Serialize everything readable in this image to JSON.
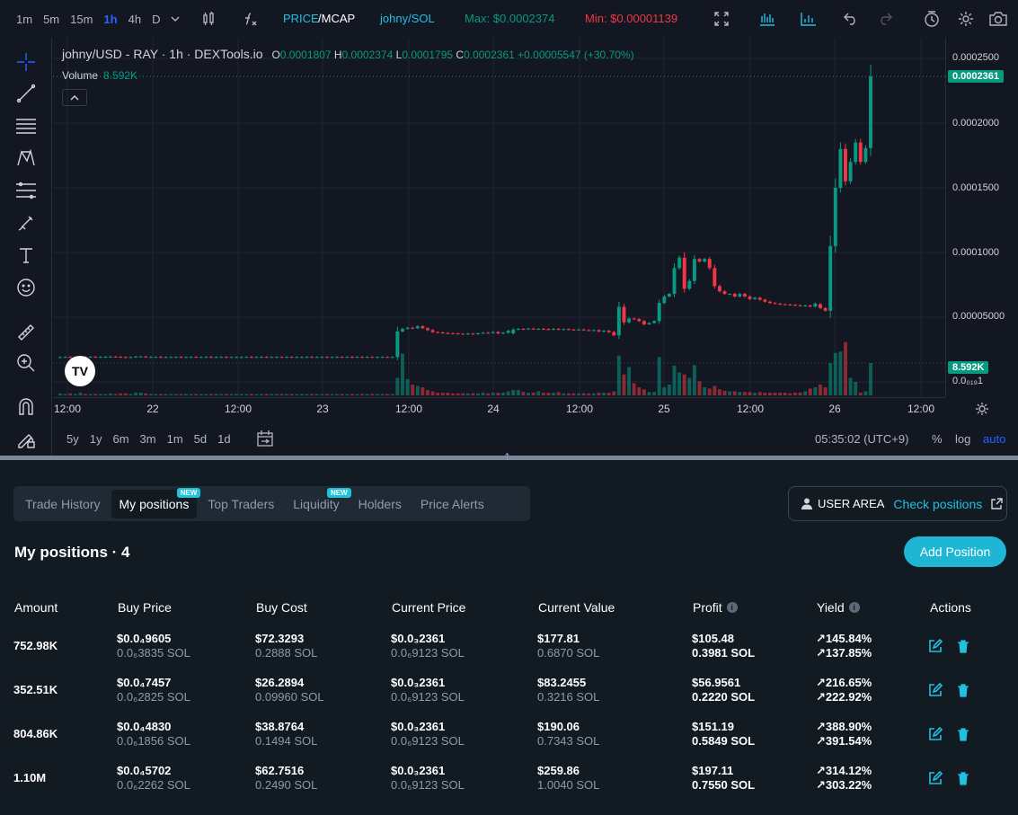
{
  "toolbar": {
    "timeframes": [
      "1m",
      "5m",
      "15m",
      "1h",
      "4h",
      "D"
    ],
    "price_label": "PRICE",
    "mcap_label": "/MCAP",
    "pair": "johny/SOL",
    "max": "Max: $0.0002374",
    "min": "Min: $0.00001139"
  },
  "legend": {
    "symbol": "johny/USD - RAY · 1h · DEXTools.io",
    "o_label": "O",
    "o": "0.0001807",
    "h_label": "H",
    "h": "0.0002374",
    "l_label": "L",
    "l": "0.0001795",
    "c_label": "C",
    "c": "0.0002361",
    "change": "+0.00005547 (+30.70%)",
    "volume_label": "Volume",
    "volume": "8.592K"
  },
  "price_axis": {
    "ticks": [
      "0.0002500",
      "0.0002000",
      "0.0001500",
      "0.0001000",
      "0.00005000",
      "0.0₀₁₉1"
    ],
    "last_price": "0.0002361",
    "last_volume": "8.592K"
  },
  "time_axis": [
    "12:00",
    "22",
    "12:00",
    "23",
    "12:00",
    "24",
    "12:00",
    "25",
    "12:00",
    "26",
    "12:00"
  ],
  "bottombar": {
    "ranges": [
      "5y",
      "1y",
      "6m",
      "3m",
      "1m",
      "5d",
      "1d"
    ],
    "clock": "05:35:02 (UTC+9)",
    "percent": "%",
    "log": "log",
    "auto": "auto"
  },
  "colors": {
    "up": "#089981",
    "down": "#f23645",
    "accent": "#1fb6d6"
  },
  "chart_data": {
    "type": "candlestick",
    "candles": [
      {
        "o": 1.91e-05,
        "c": 1.91e-05,
        "v": 0.3
      },
      {
        "o": 1.91e-05,
        "c": 1.93e-05,
        "v": 0.2
      },
      {
        "o": 1.93e-05,
        "c": 1.92e-05,
        "v": 0.3
      },
      {
        "o": 1.92e-05,
        "c": 1.92e-05,
        "v": 0.2
      },
      {
        "o": 1.92e-05,
        "c": 1.95e-05,
        "v": 0.4
      },
      {
        "o": 1.95e-05,
        "c": 1.94e-05,
        "v": 0.2
      },
      {
        "o": 1.94e-05,
        "c": 1.94e-05,
        "v": 0.2
      },
      {
        "o": 1.94e-05,
        "c": 1.93e-05,
        "v": 0.2
      },
      {
        "o": 1.93e-05,
        "c": 1.93e-05,
        "v": 0.2
      },
      {
        "o": 1.93e-05,
        "c": 1.94e-05,
        "v": 0.2
      },
      {
        "o": 1.94e-05,
        "c": 1.95e-05,
        "v": 0.3
      },
      {
        "o": 1.95e-05,
        "c": 1.94e-05,
        "v": 0.2
      },
      {
        "o": 1.94e-05,
        "c": 1.92e-05,
        "v": 0.3
      },
      {
        "o": 1.92e-05,
        "c": 1.9e-05,
        "v": 0.3
      },
      {
        "o": 1.9e-05,
        "c": 1.92e-05,
        "v": 0.2
      },
      {
        "o": 1.92e-05,
        "c": 1.95e-05,
        "v": 0.4
      },
      {
        "o": 1.95e-05,
        "c": 1.96e-05,
        "v": 0.4
      },
      {
        "o": 1.96e-05,
        "c": 1.93e-05,
        "v": 0.3
      },
      {
        "o": 1.93e-05,
        "c": 1.93e-05,
        "v": 0.2
      },
      {
        "o": 1.93e-05,
        "c": 1.93e-05,
        "v": 0.2
      },
      {
        "o": 1.93e-05,
        "c": 1.92e-05,
        "v": 0.2
      },
      {
        "o": 1.92e-05,
        "c": 1.92e-05,
        "v": 0.2
      },
      {
        "o": 1.92e-05,
        "c": 1.92e-05,
        "v": 0.2
      },
      {
        "o": 1.92e-05,
        "c": 1.93e-05,
        "v": 0.2
      },
      {
        "o": 1.93e-05,
        "c": 1.92e-05,
        "v": 0.2
      },
      {
        "o": 1.92e-05,
        "c": 1.92e-05,
        "v": 0.2
      },
      {
        "o": 1.92e-05,
        "c": 1.93e-05,
        "v": 0.2
      },
      {
        "o": 1.93e-05,
        "c": 1.92e-05,
        "v": 0.2
      },
      {
        "o": 1.92e-05,
        "c": 1.92e-05,
        "v": 0.2
      },
      {
        "o": 1.92e-05,
        "c": 1.93e-05,
        "v": 0.2
      },
      {
        "o": 1.93e-05,
        "c": 1.92e-05,
        "v": 0.2
      },
      {
        "o": 1.92e-05,
        "c": 1.92e-05,
        "v": 0.2
      },
      {
        "o": 1.92e-05,
        "c": 1.93e-05,
        "v": 0.2
      },
      {
        "o": 1.93e-05,
        "c": 1.92e-05,
        "v": 0.2
      },
      {
        "o": 1.92e-05,
        "c": 1.92e-05,
        "v": 0.2
      },
      {
        "o": 1.92e-05,
        "c": 1.92e-05,
        "v": 0.2
      },
      {
        "o": 1.92e-05,
        "c": 1.92e-05,
        "v": 0.2
      },
      {
        "o": 1.92e-05,
        "c": 1.93e-05,
        "v": 0.2
      },
      {
        "o": 1.93e-05,
        "c": 1.92e-05,
        "v": 0.2
      },
      {
        "o": 1.92e-05,
        "c": 1.92e-05,
        "v": 0.2
      },
      {
        "o": 1.92e-05,
        "c": 1.93e-05,
        "v": 0.2
      },
      {
        "o": 1.93e-05,
        "c": 1.92e-05,
        "v": 0.2
      },
      {
        "o": 1.92e-05,
        "c": 1.92e-05,
        "v": 0.2
      },
      {
        "o": 1.92e-05,
        "c": 1.93e-05,
        "v": 0.2
      },
      {
        "o": 1.93e-05,
        "c": 1.92e-05,
        "v": 0.2
      },
      {
        "o": 1.92e-05,
        "c": 1.93e-05,
        "v": 0.2
      },
      {
        "o": 1.93e-05,
        "c": 1.92e-05,
        "v": 0.2
      },
      {
        "o": 1.92e-05,
        "c": 1.92e-05,
        "v": 0.2
      },
      {
        "o": 1.92e-05,
        "c": 1.92e-05,
        "v": 0.2
      },
      {
        "o": 1.92e-05,
        "c": 1.93e-05,
        "v": 0.2
      },
      {
        "o": 1.93e-05,
        "c": 1.92e-05,
        "v": 0.2
      },
      {
        "o": 1.92e-05,
        "c": 1.92e-05,
        "v": 0.2
      },
      {
        "o": 1.92e-05,
        "c": 1.93e-05,
        "v": 0.2
      },
      {
        "o": 1.93e-05,
        "c": 1.92e-05,
        "v": 0.2
      },
      {
        "o": 1.92e-05,
        "c": 1.92e-05,
        "v": 0.2
      },
      {
        "o": 1.92e-05,
        "c": 1.93e-05,
        "v": 0.2
      },
      {
        "o": 1.93e-05,
        "c": 1.92e-05,
        "v": 0.2
      },
      {
        "o": 1.92e-05,
        "c": 1.93e-05,
        "v": 0.2
      },
      {
        "o": 1.93e-05,
        "c": 1.92e-05,
        "v": 0.2
      },
      {
        "o": 1.92e-05,
        "c": 1.93e-05,
        "v": 0.2
      },
      {
        "o": 1.93e-05,
        "c": 1.92e-05,
        "v": 0.2
      },
      {
        "o": 1.92e-05,
        "c": 1.93e-05,
        "v": 0.2
      },
      {
        "o": 1.93e-05,
        "c": 1.92e-05,
        "v": 0.2
      },
      {
        "o": 1.92e-05,
        "c": 1.92e-05,
        "v": 0.2
      },
      {
        "o": 1.92e-05,
        "c": 1.93e-05,
        "v": 0.2
      },
      {
        "o": 1.93e-05,
        "c": 1.92e-05,
        "v": 0.2
      },
      {
        "o": 1.92e-05,
        "c": 1.92e-05,
        "v": 0.2
      },
      {
        "o": 1.92e-05,
        "c": 3.9e-05,
        "v": 2.6
      },
      {
        "o": 3.9e-05,
        "c": 4.1e-05,
        "v": 6.2
      },
      {
        "o": 4.1e-05,
        "c": 4.18e-05,
        "v": 2.4
      },
      {
        "o": 4.18e-05,
        "c": 4.15e-05,
        "v": 1.6
      },
      {
        "o": 4.15e-05,
        "c": 4.3e-05,
        "v": 1.4
      },
      {
        "o": 4.3e-05,
        "c": 4.15e-05,
        "v": 1.2
      },
      {
        "o": 4.15e-05,
        "c": 4e-05,
        "v": 0.8
      },
      {
        "o": 4e-05,
        "c": 3.85e-05,
        "v": 0.6
      },
      {
        "o": 3.85e-05,
        "c": 3.82e-05,
        "v": 0.4
      },
      {
        "o": 3.82e-05,
        "c": 3.78e-05,
        "v": 0.4
      },
      {
        "o": 3.78e-05,
        "c": 3.76e-05,
        "v": 0.4
      },
      {
        "o": 3.76e-05,
        "c": 3.74e-05,
        "v": 0.3
      },
      {
        "o": 3.74e-05,
        "c": 3.72e-05,
        "v": 0.3
      },
      {
        "o": 3.72e-05,
        "c": 3.7e-05,
        "v": 0.3
      },
      {
        "o": 3.7e-05,
        "c": 3.73e-05,
        "v": 0.3
      },
      {
        "o": 3.73e-05,
        "c": 3.71e-05,
        "v": 0.3
      },
      {
        "o": 3.71e-05,
        "c": 3.75e-05,
        "v": 0.3
      },
      {
        "o": 3.75e-05,
        "c": 3.8e-05,
        "v": 0.4
      },
      {
        "o": 3.8e-05,
        "c": 3.78e-05,
        "v": 0.3
      },
      {
        "o": 3.78e-05,
        "c": 3.85e-05,
        "v": 0.4
      },
      {
        "o": 3.85e-05,
        "c": 3.75e-05,
        "v": 0.4
      },
      {
        "o": 3.75e-05,
        "c": 3.8e-05,
        "v": 0.4
      },
      {
        "o": 3.8e-05,
        "c": 3.95e-05,
        "v": 0.6
      },
      {
        "o": 3.75e-05,
        "c": 4.05e-05,
        "v": 0.8
      },
      {
        "o": 4.05e-05,
        "c": 4.1e-05,
        "v": 0.8
      },
      {
        "o": 4.1e-05,
        "c": 4.08e-05,
        "v": 0.5
      },
      {
        "o": 4.08e-05,
        "c": 4.12e-05,
        "v": 0.4
      },
      {
        "o": 4.12e-05,
        "c": 4.08e-05,
        "v": 0.4
      },
      {
        "o": 4.08e-05,
        "c": 4.1e-05,
        "v": 0.6
      },
      {
        "o": 4.1e-05,
        "c": 4.08e-05,
        "v": 0.4
      },
      {
        "o": 4.08e-05,
        "c": 4.05e-05,
        "v": 0.4
      },
      {
        "o": 4.05e-05,
        "c": 4.1e-05,
        "v": 0.4
      },
      {
        "o": 4.1e-05,
        "c": 4.05e-05,
        "v": 0.5
      },
      {
        "o": 4.05e-05,
        "c": 4.08e-05,
        "v": 0.3
      },
      {
        "o": 4.08e-05,
        "c": 4.05e-05,
        "v": 0.3
      },
      {
        "o": 4.05e-05,
        "c": 4.03e-05,
        "v": 0.3
      },
      {
        "o": 4.03e-05,
        "c": 4.05e-05,
        "v": 0.3
      },
      {
        "o": 4.05e-05,
        "c": 4e-05,
        "v": 0.3
      },
      {
        "o": 4e-05,
        "c": 3.98e-05,
        "v": 0.3
      },
      {
        "o": 3.98e-05,
        "c": 4e-05,
        "v": 0.3
      },
      {
        "o": 4e-05,
        "c": 3.9e-05,
        "v": 0.4
      },
      {
        "o": 3.9e-05,
        "c": 3.95e-05,
        "v": 0.4
      },
      {
        "o": 3.95e-05,
        "c": 3.85e-05,
        "v": 0.4
      },
      {
        "o": 3.85e-05,
        "c": 3.6e-05,
        "v": 0.6
      },
      {
        "o": 3.6e-05,
        "c": 5.8e-05,
        "v": 5.9
      },
      {
        "o": 5.8e-05,
        "c": 4.6e-05,
        "v": 3.1
      },
      {
        "o": 4.6e-05,
        "c": 4.9e-05,
        "v": 4.2
      },
      {
        "o": 4.9e-05,
        "c": 4.85e-05,
        "v": 1.8
      },
      {
        "o": 4.85e-05,
        "c": 4.7e-05,
        "v": 1.2
      },
      {
        "o": 4.7e-05,
        "c": 4.45e-05,
        "v": 0.9
      },
      {
        "o": 4.45e-05,
        "c": 4.55e-05,
        "v": 0.5
      },
      {
        "o": 4.55e-05,
        "c": 4.7e-05,
        "v": 0.5
      },
      {
        "o": 4.7e-05,
        "c": 6.1e-05,
        "v": 5.7
      },
      {
        "o": 6.1e-05,
        "c": 6.6e-05,
        "v": 1.2
      },
      {
        "o": 6.6e-05,
        "c": 6.8e-05,
        "v": 1.6
      },
      {
        "o": 6.8e-05,
        "c": 8.8e-05,
        "v": 4.4
      },
      {
        "o": 8.8e-05,
        "c": 9.6e-05,
        "v": 3.4
      },
      {
        "o": 9.6e-05,
        "c": 7.2e-05,
        "v": 3.1
      },
      {
        "o": 7.2e-05,
        "c": 7.8e-05,
        "v": 2.6
      },
      {
        "o": 7.8e-05,
        "c": 9.5e-05,
        "v": 4.5
      },
      {
        "o": 9.5e-05,
        "c": 9.3e-05,
        "v": 2.1
      },
      {
        "o": 9.3e-05,
        "c": 9.5e-05,
        "v": 1.2
      },
      {
        "o": 9.5e-05,
        "c": 8.8e-05,
        "v": 1.0
      },
      {
        "o": 8.8e-05,
        "c": 7.4e-05,
        "v": 1.4
      },
      {
        "o": 7.4e-05,
        "c": 7e-05,
        "v": 0.9
      },
      {
        "o": 7e-05,
        "c": 6.8e-05,
        "v": 0.7
      },
      {
        "o": 6.8e-05,
        "c": 6.8e-05,
        "v": 0.6
      },
      {
        "o": 6.8e-05,
        "c": 6.6e-05,
        "v": 0.6
      },
      {
        "o": 6.6e-05,
        "c": 6.8e-05,
        "v": 0.5
      },
      {
        "o": 6.8e-05,
        "c": 6.6e-05,
        "v": 0.5
      },
      {
        "o": 6.6e-05,
        "c": 6.4e-05,
        "v": 0.5
      },
      {
        "o": 6.4e-05,
        "c": 6.5e-05,
        "v": 0.4
      },
      {
        "o": 6.5e-05,
        "c": 6.35e-05,
        "v": 0.5
      },
      {
        "o": 6.35e-05,
        "c": 6.2e-05,
        "v": 0.4
      },
      {
        "o": 6.2e-05,
        "c": 6.1e-05,
        "v": 0.4
      },
      {
        "o": 6.1e-05,
        "c": 6.05e-05,
        "v": 0.4
      },
      {
        "o": 6.05e-05,
        "c": 6e-05,
        "v": 0.4
      },
      {
        "o": 6e-05,
        "c": 5.98e-05,
        "v": 0.4
      },
      {
        "o": 5.98e-05,
        "c": 5.95e-05,
        "v": 0.3
      },
      {
        "o": 5.95e-05,
        "c": 5.92e-05,
        "v": 0.4
      },
      {
        "o": 5.92e-05,
        "c": 5.88e-05,
        "v": 0.4
      },
      {
        "o": 5.88e-05,
        "c": 5.9e-05,
        "v": 0.6
      },
      {
        "o": 5.9e-05,
        "c": 5.82e-05,
        "v": 1.0
      },
      {
        "o": 5.82e-05,
        "c": 6.05e-05,
        "v": 1.2
      },
      {
        "o": 6e-05,
        "c": 5.7e-05,
        "v": 1.6
      },
      {
        "o": 5.7e-05,
        "c": 5.5e-05,
        "v": 1.2
      },
      {
        "o": 5.5e-05,
        "c": 0.000105,
        "v": 4.8
      },
      {
        "o": 0.000105,
        "c": 0.00015,
        "v": 6.3
      },
      {
        "o": 0.00015,
        "c": 0.00018,
        "v": 6.5
      },
      {
        "o": 0.00018,
        "c": 0.000155,
        "v": 7.9
      },
      {
        "o": 0.000155,
        "c": 0.00017,
        "v": 2.6
      },
      {
        "o": 0.00017,
        "c": 0.000185,
        "v": 2.0
      },
      {
        "o": 0.000185,
        "c": 0.00017,
        "v": 0.4
      },
      {
        "o": 0.00017,
        "c": 0.0001807,
        "v": 0.6
      },
      {
        "o": 0.0001807,
        "c": 0.0002361,
        "v": 4.8
      }
    ],
    "y_min": 1.91e-05,
    "y_max": 0.0002374,
    "x_ticks": [
      "12:00",
      "22",
      "12:00",
      "23",
      "12:00",
      "24",
      "12:00",
      "25",
      "12:00",
      "26",
      "12:00"
    ]
  },
  "panel": {
    "tabs": [
      {
        "label": "Trade History",
        "badge": ""
      },
      {
        "label": "My positions",
        "badge": "NEW"
      },
      {
        "label": "Top Traders",
        "badge": ""
      },
      {
        "label": "Liquidity",
        "badge": "NEW"
      },
      {
        "label": "Holders",
        "badge": ""
      },
      {
        "label": "Price Alerts",
        "badge": ""
      }
    ],
    "user_area": "USER AREA",
    "check_positions": "Check positions",
    "title": "My positions · 4",
    "add_button": "Add Position",
    "headers": [
      "Amount",
      "Buy Price",
      "Buy Cost",
      "Current Price",
      "Current Value",
      "Profit",
      "Yield",
      "Actions"
    ],
    "rows": [
      {
        "amount": "752.98K",
        "buy_price": "$0.0₄9605",
        "buy_price_sol": "0.0₆3835 SOL",
        "buy_cost": "$72.3293",
        "buy_cost_sol": "0.2888 SOL",
        "cur_price": "$0.0₃2361",
        "cur_price_sol": "0.0₆9123 SOL",
        "cur_value": "$177.81",
        "cur_value_sol": "0.6870 SOL",
        "profit": "$105.48",
        "profit_sol": "0.3981 SOL",
        "yield": "145.84%",
        "yield_sol": "137.85%"
      },
      {
        "amount": "352.51K",
        "buy_price": "$0.0₄7457",
        "buy_price_sol": "0.0₆2825 SOL",
        "buy_cost": "$26.2894",
        "buy_cost_sol": "0.09960 SOL",
        "cur_price": "$0.0₃2361",
        "cur_price_sol": "0.0₆9123 SOL",
        "cur_value": "$83.2455",
        "cur_value_sol": "0.3216 SOL",
        "profit": "$56.9561",
        "profit_sol": "0.2220 SOL",
        "yield": "216.65%",
        "yield_sol": "222.92%"
      },
      {
        "amount": "804.86K",
        "buy_price": "$0.0₄4830",
        "buy_price_sol": "0.0₆1856 SOL",
        "buy_cost": "$38.8764",
        "buy_cost_sol": "0.1494 SOL",
        "cur_price": "$0.0₃2361",
        "cur_price_sol": "0.0₆9123 SOL",
        "cur_value": "$190.06",
        "cur_value_sol": "0.7343 SOL",
        "profit": "$151.19",
        "profit_sol": "0.5849 SOL",
        "yield": "388.90%",
        "yield_sol": "391.54%"
      },
      {
        "amount": "1.10M",
        "buy_price": "$0.0₄5702",
        "buy_price_sol": "0.0₆2262 SOL",
        "buy_cost": "$62.7516",
        "buy_cost_sol": "0.2490 SOL",
        "cur_price": "$0.0₃2361",
        "cur_price_sol": "0.0₆9123 SOL",
        "cur_value": "$259.86",
        "cur_value_sol": "1.0040 SOL",
        "profit": "$197.11",
        "profit_sol": "0.7550 SOL",
        "yield": "314.12%",
        "yield_sol": "303.22%"
      }
    ]
  }
}
